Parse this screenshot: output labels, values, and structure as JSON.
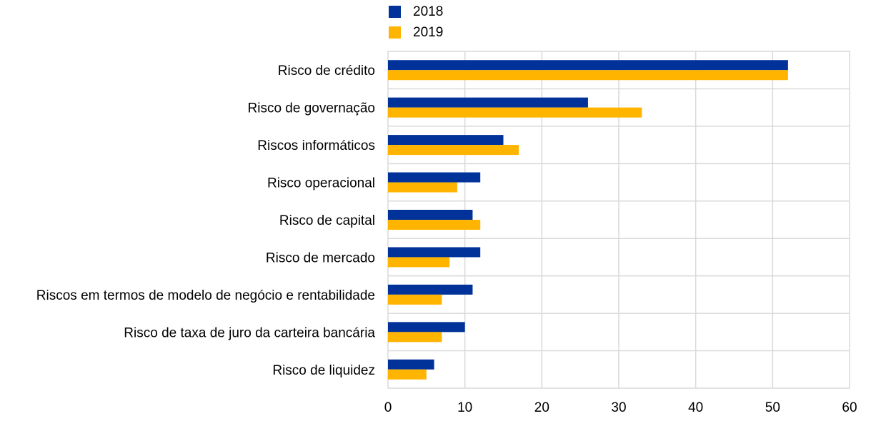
{
  "chart_data": {
    "type": "bar",
    "orientation": "horizontal",
    "categories": [
      "Risco de crédito",
      "Risco de governação",
      "Riscos informáticos",
      "Risco operacional",
      "Risco de capital",
      "Risco de mercado",
      "Riscos em termos de modelo de negócio e rentabilidade",
      "Risco de taxa de juro da carteira bancária",
      "Risco de liquidez"
    ],
    "series": [
      {
        "name": "2018",
        "color": "#003299",
        "values": [
          52,
          26,
          15,
          12,
          11,
          12,
          11,
          10,
          6
        ]
      },
      {
        "name": "2019",
        "color": "#FFB400",
        "values": [
          52,
          33,
          17,
          9,
          12,
          8,
          7,
          7,
          5
        ]
      }
    ],
    "xlim": [
      0,
      60
    ],
    "xticks": [
      "0",
      "10",
      "20",
      "30",
      "40",
      "50",
      "60"
    ],
    "title": "",
    "xlabel": "",
    "ylabel": "",
    "grid": true,
    "legend_position": "top"
  }
}
